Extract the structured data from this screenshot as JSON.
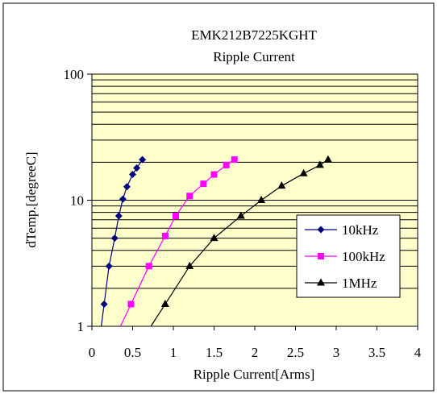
{
  "chart_data": {
    "type": "line",
    "title": "EMK212B7225KGHT",
    "subtitle": "Ripple Current",
    "xlabel": "Ripple Current[Arms]",
    "ylabel": "dTemp.[degreeC]",
    "xlim": [
      0,
      4
    ],
    "ylim": [
      1,
      100
    ],
    "yscale": "log",
    "xticks": [
      "0",
      "0.5",
      "1",
      "1.5",
      "2",
      "2.5",
      "3",
      "3.5",
      "4"
    ],
    "yticks": [
      "1",
      "10",
      "100"
    ],
    "grid": true,
    "plot_background": "#ffffcc",
    "legend_position": "right",
    "series": [
      {
        "name": "10kHz",
        "color": "#000080",
        "marker": "diamond",
        "x": [
          0.15,
          0.21,
          0.28,
          0.33,
          0.38,
          0.43,
          0.5,
          0.55,
          0.62
        ],
        "y": [
          1.5,
          3.0,
          5.0,
          7.5,
          10.2,
          12.8,
          16.0,
          18.0,
          21.0
        ]
      },
      {
        "name": "100kHz",
        "color": "#ff00ff",
        "marker": "square",
        "x": [
          0.48,
          0.7,
          0.9,
          1.03,
          1.2,
          1.37,
          1.5,
          1.65,
          1.75
        ],
        "y": [
          1.5,
          3.0,
          5.2,
          7.5,
          10.8,
          13.5,
          16.0,
          19.0,
          21.0
        ]
      },
      {
        "name": "1MHz",
        "color": "#000000",
        "marker": "triangle",
        "x": [
          0.9,
          1.2,
          1.5,
          1.83,
          2.08,
          2.33,
          2.6,
          2.8,
          2.9
        ],
        "y": [
          1.5,
          3.0,
          5.0,
          7.5,
          10.0,
          13.0,
          16.3,
          19.0,
          21.0
        ]
      }
    ]
  }
}
